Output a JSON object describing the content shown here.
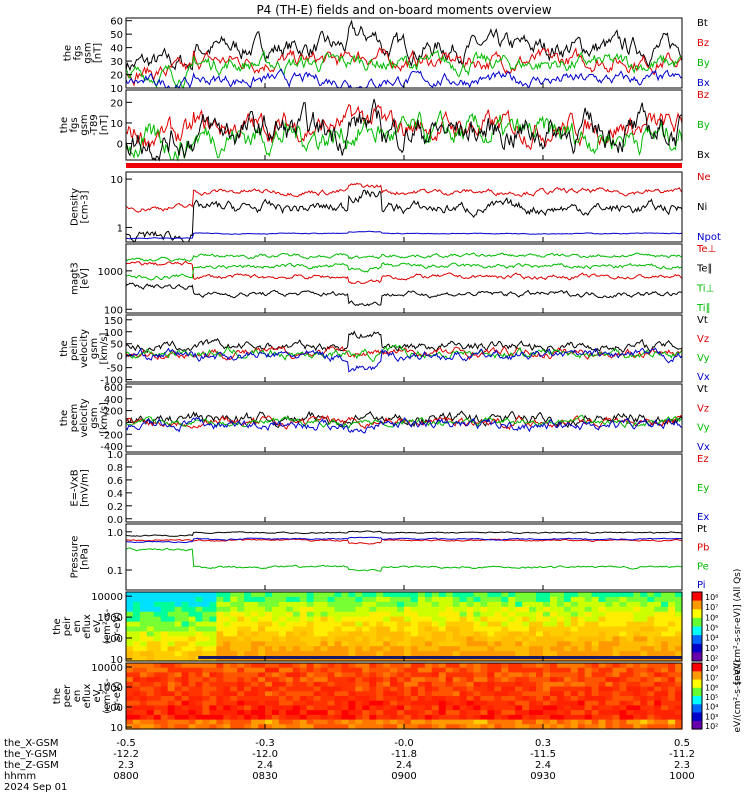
{
  "title": "P4 (TH-E) fields and on-board moments overview",
  "footer": {
    "row_labels": [
      "the_X-GSM",
      "the_Y-GSM",
      "the_Z-GSM",
      "hhmm",
      "2024 Sep 01"
    ],
    "columns": [
      [
        "-0.5",
        "-12.2",
        "2.3",
        "0800"
      ],
      [
        "-0.3",
        "-12.0",
        "2.4",
        "0830"
      ],
      [
        "-0.0",
        "-11.8",
        "2.4",
        "0900"
      ],
      [
        "0.3",
        "-11.5",
        "2.4",
        "0930"
      ],
      [
        "0.5",
        "-11.2",
        "2.3",
        "1000"
      ]
    ]
  },
  "colorbar_labels": {
    "peir": "[eV/(cm²-s-sr-eV)] (All Qs)",
    "peer": "eV/(cm²-s-sr-eV)"
  },
  "colorbar_ticks": {
    "peir": [
      "10⁸",
      "10⁷",
      "10⁶",
      "10⁵",
      "10⁴",
      "10³",
      "10²"
    ],
    "peer": [
      "10⁸",
      "10⁷",
      "10⁶",
      "10⁵",
      "10⁴",
      "10³",
      "10²"
    ]
  },
  "chart_data": [
    {
      "id": "fgs_gsm",
      "type": "line",
      "ylabel": [
        "the",
        "fgs",
        "gsm",
        "[nT]"
      ],
      "ylim": [
        10,
        62
      ],
      "ticks": [
        "10",
        "20",
        "30",
        "40",
        "50",
        "60"
      ],
      "series": [
        {
          "name": "Bt",
          "color": "#000000"
        },
        {
          "name": "Bz",
          "color": "#dd0000"
        },
        {
          "name": "By",
          "color": "#00bb00"
        },
        {
          "name": "Bx",
          "color": "#0000cc"
        }
      ]
    },
    {
      "id": "fgs_dsl",
      "type": "line",
      "ylabel": [
        "the",
        "fgs",
        "gsm",
        "-T89",
        "[nT]"
      ],
      "ylim": [
        -8,
        26
      ],
      "ticks": [
        "0",
        "10",
        "20"
      ],
      "series": [
        {
          "name": "Bz",
          "color": "#dd0000"
        },
        {
          "name": "By",
          "color": "#00bb00"
        },
        {
          "name": "Bx",
          "color": "#000000"
        }
      ]
    },
    {
      "id": "density",
      "type": "line",
      "log": true,
      "ylabel": [
        "Density",
        "[cm-3]"
      ],
      "ylim": [
        0.5,
        14
      ],
      "ticks": [
        "1",
        "10"
      ],
      "series": [
        {
          "name": "Ne",
          "color": "#dd0000"
        },
        {
          "name": "Ni",
          "color": "#000000"
        },
        {
          "name": "Npot",
          "color": "#0000cc"
        }
      ]
    },
    {
      "id": "temperature",
      "type": "line",
      "log": true,
      "ylabel": [
        "magt3",
        "[eV]"
      ],
      "ylim": [
        80,
        5000
      ],
      "ticks": [
        "100",
        "1000"
      ],
      "series": [
        {
          "name": "Te⊥",
          "color": "#dd0000"
        },
        {
          "name": "Te∥",
          "color": "#000000"
        },
        {
          "name": "Ti⊥",
          "color": "#00bb00"
        },
        {
          "name": "Ti∥",
          "color": "#00bb00"
        }
      ]
    },
    {
      "id": "peim_velocity",
      "type": "line",
      "ylabel": [
        "the",
        "peim",
        "velocity",
        "gsm",
        "[km/s]"
      ],
      "ylim": [
        -110,
        170
      ],
      "ticks": [
        "-100",
        "-50",
        "0",
        "50",
        "100",
        "150"
      ],
      "series": [
        {
          "name": "Vt",
          "color": "#000000"
        },
        {
          "name": "Vz",
          "color": "#dd0000"
        },
        {
          "name": "Vy",
          "color": "#00bb00"
        },
        {
          "name": "Vx",
          "color": "#0000cc"
        }
      ]
    },
    {
      "id": "peem_velocity",
      "type": "line",
      "ylabel": [
        "the",
        "peem",
        "velocity",
        "gsm",
        "[km/s]"
      ],
      "ylim": [
        -500,
        650
      ],
      "ticks": [
        "-400",
        "-200",
        "0",
        "200",
        "400",
        "600"
      ],
      "series": [
        {
          "name": "Vt",
          "color": "#000000"
        },
        {
          "name": "Vz",
          "color": "#dd0000"
        },
        {
          "name": "Vy",
          "color": "#00bb00"
        },
        {
          "name": "Vx",
          "color": "#0000cc"
        }
      ]
    },
    {
      "id": "efield",
      "type": "line",
      "ylabel": [
        "E=-VxB",
        "[mV/m]"
      ],
      "ylim": [
        -0.05,
        1.0
      ],
      "ticks": [
        "0.0",
        "0.2",
        "0.4",
        "0.6",
        "0.8",
        "1.0"
      ],
      "series": [
        {
          "name": "Ez",
          "color": "#dd0000"
        },
        {
          "name": "Ey",
          "color": "#00bb00"
        },
        {
          "name": "Ex",
          "color": "#0000cc"
        }
      ]
    },
    {
      "id": "pressure",
      "type": "line",
      "log": true,
      "ylabel": [
        "Pressure",
        "[nPa]"
      ],
      "ylim": [
        0.03,
        1.6
      ],
      "ticks": [
        "0.1",
        "1.0"
      ],
      "series": [
        {
          "name": "Pt",
          "color": "#000000"
        },
        {
          "name": "Pb",
          "color": "#dd0000"
        },
        {
          "name": "Pe",
          "color": "#00bb00"
        },
        {
          "name": "Pi",
          "color": "#0000cc"
        }
      ]
    },
    {
      "id": "peir",
      "type": "heatmap",
      "ylabel": [
        "the",
        "peir",
        "en",
        "eflux",
        "eV",
        "(cm²-s-",
        "sr-eV)"
      ],
      "ticks": [
        "10",
        "100",
        "1000",
        "10000"
      ]
    },
    {
      "id": "peer",
      "type": "heatmap",
      "ylabel": [
        "the",
        "peer",
        "en",
        "eflux",
        "eV",
        "(cm²-s-",
        "sr-eV)"
      ],
      "ticks": [
        "10",
        "100",
        "1000",
        "10000"
      ]
    }
  ]
}
